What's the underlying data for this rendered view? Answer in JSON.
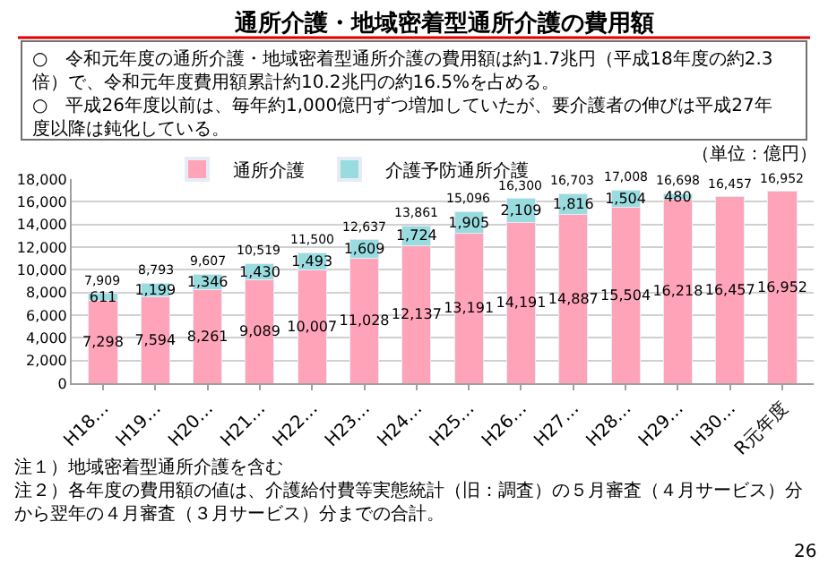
{
  "chart_data": {
    "type": "bar",
    "title": "通所介護・地域密着型通所介護の費用額",
    "categories": [
      "H18…",
      "H19…",
      "H20…",
      "H21…",
      "H22…",
      "H23…",
      "H24…",
      "H25…",
      "H26…",
      "H27…",
      "H28…",
      "H29…",
      "H30…",
      "R元年度"
    ],
    "series": [
      {
        "name": "通所介護",
        "color": "#ffa3b8",
        "values": [
          7298,
          7594,
          8261,
          9089,
          10007,
          11028,
          12137,
          13191,
          14191,
          14887,
          15504,
          16218,
          16457,
          16952
        ],
        "value_labels": [
          "7,298",
          "7,594",
          "8,261",
          "9,089",
          "10,007",
          "11,028",
          "12,137",
          "13,191",
          "14,191",
          "14,887",
          "15,504",
          "16,218",
          "16,457",
          "16,952"
        ]
      },
      {
        "name": "介護予防通所介護",
        "color": "#99dce0",
        "values": [
          611,
          1199,
          1346,
          1430,
          1493,
          1609,
          1724,
          1905,
          2109,
          1816,
          1504,
          480,
          null,
          null
        ],
        "value_labels": [
          "611",
          "1,199",
          "1,346",
          "1,430",
          "1,493",
          "1,609",
          "1,724",
          "1,905",
          "2,109",
          "1,816",
          "1,504",
          "480",
          null,
          null
        ]
      }
    ],
    "stacked": true,
    "totals": [
      "7,909",
      "8,793",
      "9,607",
      "10,519",
      "11,500",
      "12,637",
      "13,861",
      "15,096",
      "16,300",
      "16,703",
      "17,008",
      "16,698",
      "16,457",
      "16,952"
    ],
    "ylim": [
      0,
      18000
    ],
    "yticks": [
      {
        "value": 0,
        "label": "0"
      },
      {
        "value": 2000,
        "label": "2,000"
      },
      {
        "value": 4000,
        "label": "4,000"
      },
      {
        "value": 6000,
        "label": "6,000"
      },
      {
        "value": 8000,
        "label": "8,000"
      },
      {
        "value": 10000,
        "label": "10,000"
      },
      {
        "value": 12000,
        "label": "12,000"
      },
      {
        "value": 14000,
        "label": "14,000"
      },
      {
        "value": 16000,
        "label": "16,000"
      },
      {
        "value": 18000,
        "label": "18,000"
      }
    ],
    "grid": "y",
    "legend": "top",
    "annotations": [
      "○　令和元年度の通所介護・地域密着型通所介護の費用額は約1.7兆円（平成18年度の約2.3倍）で、令和元年度費用額累計約10.2兆円の約16.5%を占める。",
      "○　平成26年度以前は、毎年約1,000億円ずつ増加していたが、要介護者の伸びは平成27年度以降は鈍化している。",
      "（単位：億円）",
      "注１）地域密着型通所介護を含む",
      "注２）各年度の費用額の値は、介護給付費等実態統計（旧：調査）の５月審査（４月サービス）分から翌年の４月審査（３月サービス）分までの合計。",
      "26"
    ]
  }
}
